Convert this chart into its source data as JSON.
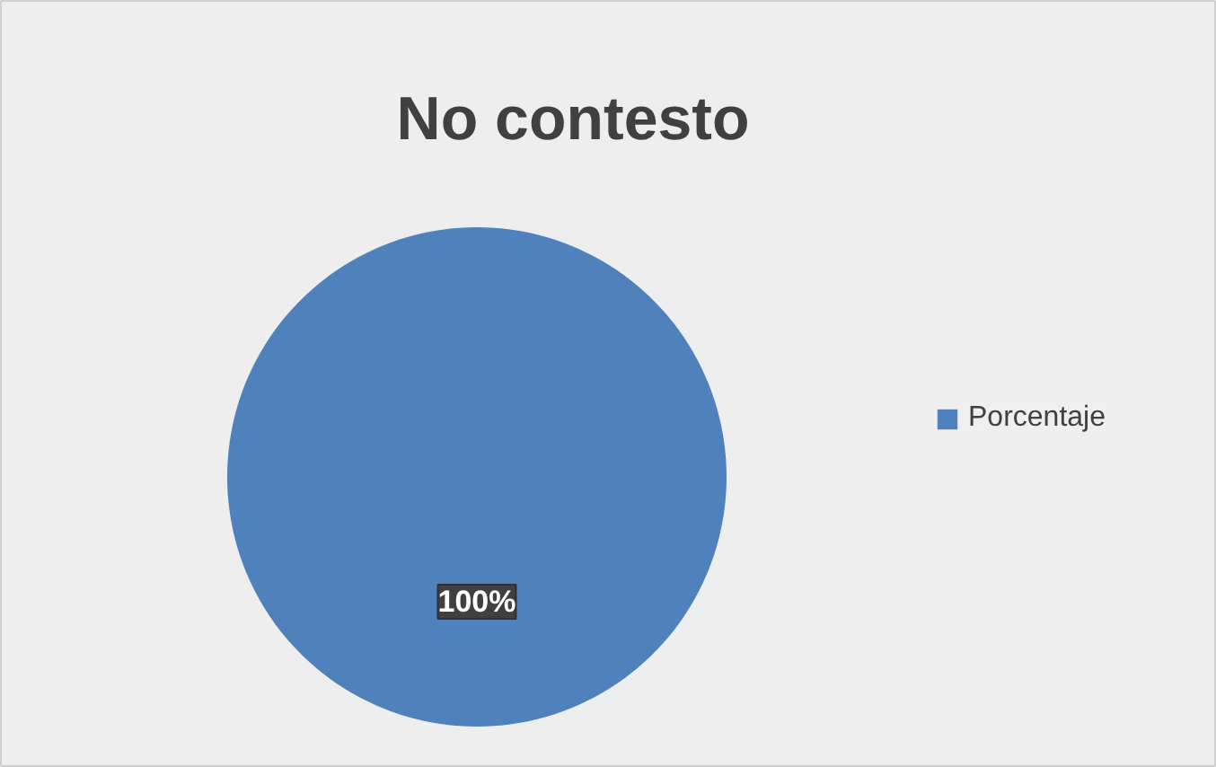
{
  "chart_data": {
    "type": "pie",
    "title": "No contesto",
    "categories": [
      "Porcentaje"
    ],
    "values": [
      100
    ],
    "colors": [
      "#4f81bd"
    ],
    "value_labels": [
      "100%"
    ],
    "legend": "right"
  }
}
